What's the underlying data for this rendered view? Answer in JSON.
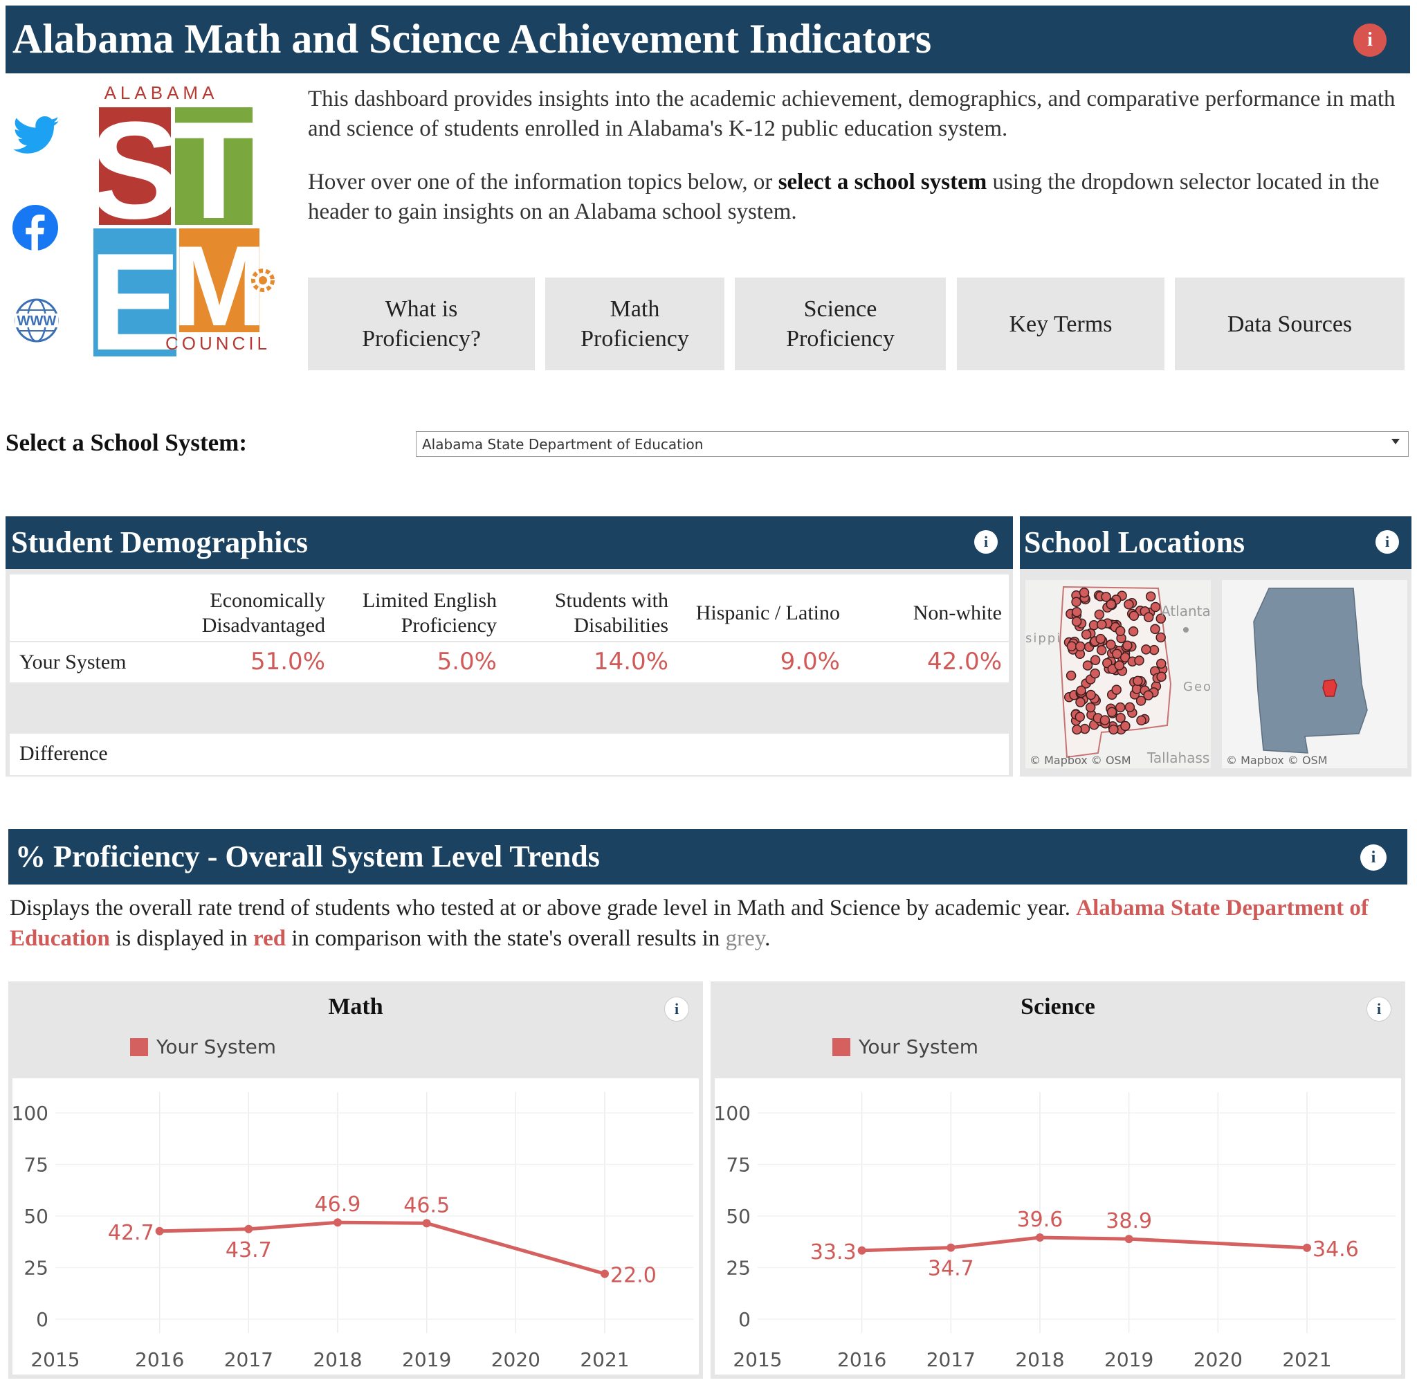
{
  "header": {
    "title": "Alabama Math and Science Achievement Indicators",
    "info_glyph": "i"
  },
  "logo": {
    "top_text": "ALABAMA",
    "bottom_text": "COUNCIL",
    "letters": [
      "S",
      "T",
      "E",
      "M"
    ],
    "colors": {
      "red": "#b63a33",
      "green": "#7aa83e",
      "blue": "#3ea2d6",
      "orange": "#e58a2d"
    }
  },
  "social": [
    {
      "name": "twitter-icon",
      "color": "#1da1f2"
    },
    {
      "name": "facebook-icon",
      "color": "#1877f2"
    },
    {
      "name": "www-icon",
      "label": "WWW",
      "color": "#3b6fb6"
    }
  ],
  "intro": {
    "p1": "This dashboard provides insights into the academic achievement, demographics, and comparative performance in math and science of students enrolled in Alabama's K-12 public education system.",
    "p2_a": "Hover over one of the information topics below, or ",
    "p2_bold": "select a school system",
    "p2_b": " using the dropdown selector located in the header to gain insights on an Alabama school system."
  },
  "topics": [
    {
      "label": "What is\nProficiency?"
    },
    {
      "label": "Math\nProficiency"
    },
    {
      "label": "Science\nProficiency"
    },
    {
      "label": "Key Terms"
    },
    {
      "label": "Data Sources"
    }
  ],
  "selector": {
    "label": "Select a School System:",
    "value": "Alabama State Department of Education"
  },
  "demographics": {
    "title": "Student Demographics",
    "columns": [
      "Economically\nDisadvantaged",
      "Limited English\nProficiency",
      "Students with\nDisabilities",
      "Hispanic / Latino",
      "Non-white"
    ],
    "rows": [
      {
        "label": "Your System",
        "values": [
          "51.0%",
          "5.0%",
          "14.0%",
          "9.0%",
          "42.0%"
        ]
      },
      {
        "label": "Difference",
        "values": []
      }
    ]
  },
  "locations": {
    "title": "School Locations",
    "map1_labels": {
      "atlanta": "Atlanta",
      "mississippi": "sippi",
      "georgia": "Geo",
      "tallahassee": "Tallahass",
      "credit": "© Mapbox  © OSM"
    },
    "map2_labels": {
      "credit": "© Mapbox  © OSM"
    }
  },
  "proficiency": {
    "title": "% Proficiency - Overall System Level Trends",
    "desc_a": "Displays the overall rate trend of students who tested at or above grade level in Math and Science by academic year.  ",
    "desc_system": "Alabama State Department of Education",
    "desc_b": " is displayed in ",
    "desc_red": "red",
    "desc_c": " in comparison with the state's overall results in ",
    "desc_grey": "grey",
    "desc_d": "."
  },
  "colors": {
    "navy": "#1b4260",
    "series_red": "#d4615f",
    "label_red": "#cf5a58"
  },
  "chart_data": [
    {
      "type": "line",
      "title": "Math",
      "legend": [
        "Your System"
      ],
      "x": [
        "2015",
        "2016",
        "2017",
        "2018",
        "2019",
        "2020",
        "2021"
      ],
      "series": [
        {
          "name": "Your System",
          "points": [
            {
              "x": 2016,
              "y": 42.7
            },
            {
              "x": 2017,
              "y": 43.7
            },
            {
              "x": 2018,
              "y": 46.9
            },
            {
              "x": 2019,
              "y": 46.5
            },
            {
              "x": 2021,
              "y": 22.0
            }
          ]
        }
      ],
      "data_labels": [
        "42.7",
        "43.7",
        "46.9",
        "46.5",
        "22.0"
      ],
      "label_positions": [
        "left",
        "below",
        "above",
        "above",
        "right"
      ],
      "y_ticks": [
        "0",
        "25",
        "50",
        "75",
        "100"
      ],
      "ylim": [
        0,
        100
      ],
      "xlim": [
        2015,
        2021
      ]
    },
    {
      "type": "line",
      "title": "Science",
      "legend": [
        "Your System"
      ],
      "x": [
        "2015",
        "2016",
        "2017",
        "2018",
        "2019",
        "2020",
        "2021"
      ],
      "series": [
        {
          "name": "Your System",
          "points": [
            {
              "x": 2016,
              "y": 33.3
            },
            {
              "x": 2017,
              "y": 34.7
            },
            {
              "x": 2018,
              "y": 39.6
            },
            {
              "x": 2019,
              "y": 38.9
            },
            {
              "x": 2021,
              "y": 34.6
            }
          ]
        }
      ],
      "data_labels": [
        "33.3",
        "34.7",
        "39.6",
        "38.9",
        "34.6"
      ],
      "label_positions": [
        "left",
        "below",
        "above",
        "above",
        "right"
      ],
      "y_ticks": [
        "0",
        "25",
        "50",
        "75",
        "100"
      ],
      "ylim": [
        0,
        100
      ],
      "xlim": [
        2015,
        2021
      ]
    }
  ]
}
